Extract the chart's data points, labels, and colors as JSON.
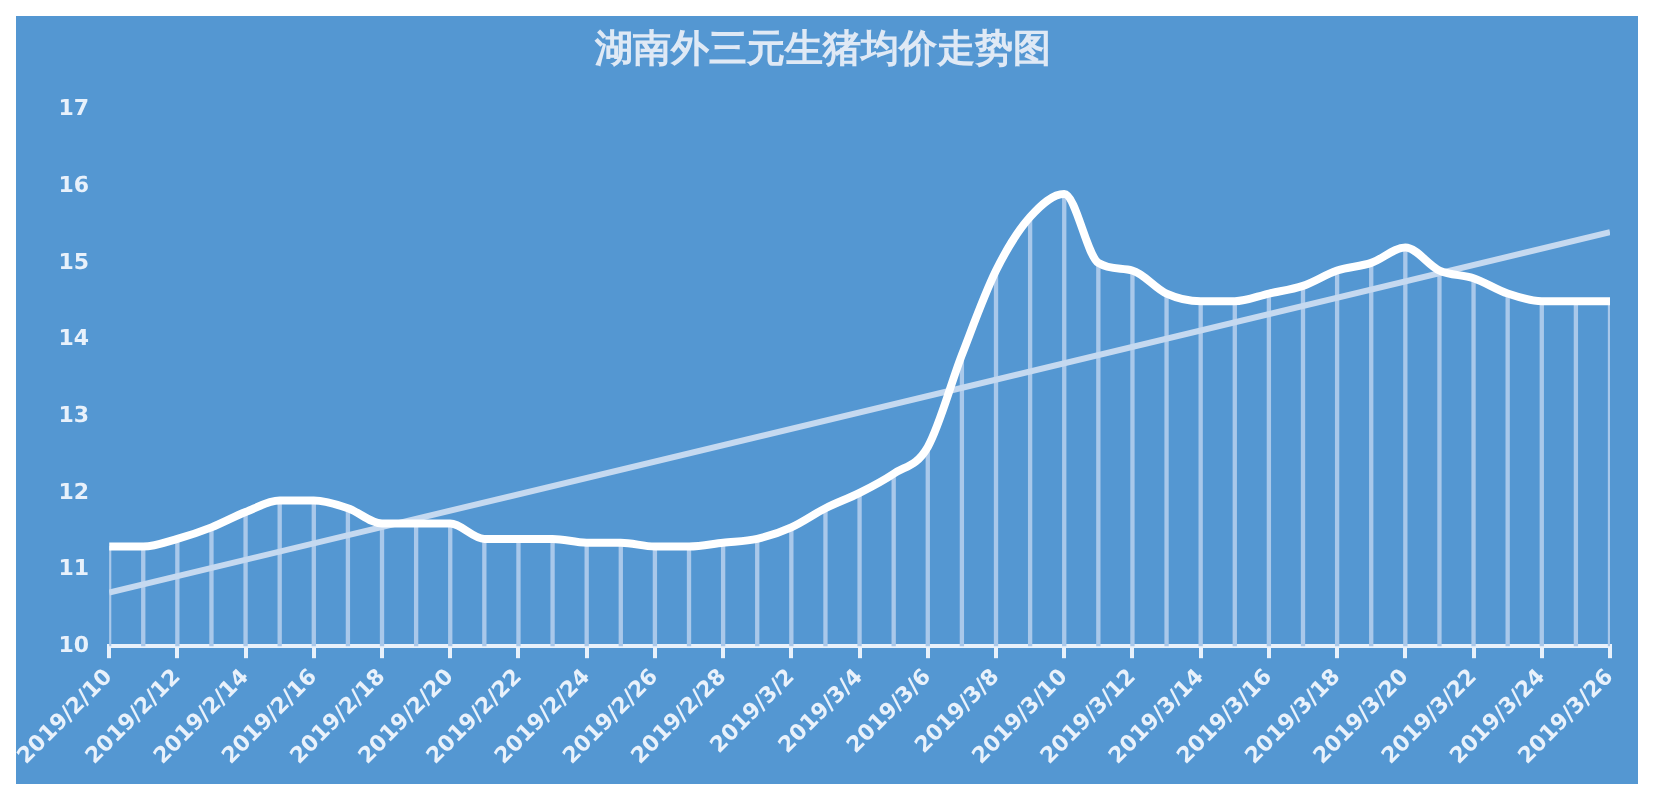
{
  "chart_data": {
    "type": "line",
    "title": "湖南外三元生猪均价走势图",
    "categories": [
      "2019/2/10",
      null,
      "2019/2/12",
      null,
      "2019/2/14",
      null,
      "2019/2/16",
      null,
      "2019/2/18",
      null,
      "2019/2/20",
      null,
      "2019/2/22",
      null,
      "2019/2/24",
      null,
      "2019/2/26",
      null,
      "2019/2/28",
      null,
      "2019/3/2",
      null,
      "2019/3/4",
      null,
      "2019/3/6",
      null,
      "2019/3/8",
      null,
      "2019/3/10",
      null,
      "2019/3/12",
      null,
      "2019/3/14",
      null,
      "2019/3/16",
      null,
      "2019/3/18",
      null,
      "2019/3/20",
      null,
      "2019/3/22",
      null,
      "2019/3/24",
      null,
      "2019/3/26"
    ],
    "series": [
      {
        "color": "#ffffff",
        "values": [
          11.3,
          11.3,
          11.4,
          11.55,
          11.75,
          11.9,
          11.9,
          11.8,
          11.6,
          11.6,
          11.6,
          11.4,
          11.4,
          11.4,
          11.35,
          11.35,
          11.3,
          11.3,
          11.35,
          11.4,
          11.55,
          11.8,
          12.0,
          12.25,
          12.6,
          13.8,
          14.9,
          15.6,
          15.9,
          15.0,
          14.9,
          14.6,
          14.5,
          14.5,
          14.6,
          14.7,
          14.9,
          15.0,
          15.2,
          14.9,
          14.8,
          14.6,
          14.5,
          14.5,
          14.5
        ]
      },
      {
        "type": "bar",
        "color": "#a9c8ea",
        "values": [
          11.3,
          11.3,
          11.4,
          11.55,
          11.75,
          11.9,
          11.9,
          11.8,
          11.6,
          11.6,
          11.6,
          11.4,
          11.4,
          11.4,
          11.35,
          11.35,
          11.3,
          11.3,
          11.35,
          11.4,
          11.55,
          11.8,
          12.0,
          12.25,
          12.6,
          13.8,
          14.9,
          15.6,
          15.9,
          15.0,
          14.9,
          14.6,
          14.5,
          14.5,
          14.6,
          14.7,
          14.9,
          15.0,
          15.2,
          14.9,
          14.8,
          14.6,
          14.5,
          14.5,
          14.5
        ]
      },
      {
        "type": "line",
        "color": "#c5d9f0",
        "x": [
          "2019/2/10",
          "2019/3/26"
        ],
        "values": [
          10.7,
          15.4
        ]
      }
    ],
    "ylim": [
      10,
      17
    ],
    "yticks": [
      10,
      11,
      12,
      13,
      14,
      15,
      16,
      17
    ],
    "grid": false,
    "legend": false,
    "marker": "none",
    "line_style": "solid"
  }
}
